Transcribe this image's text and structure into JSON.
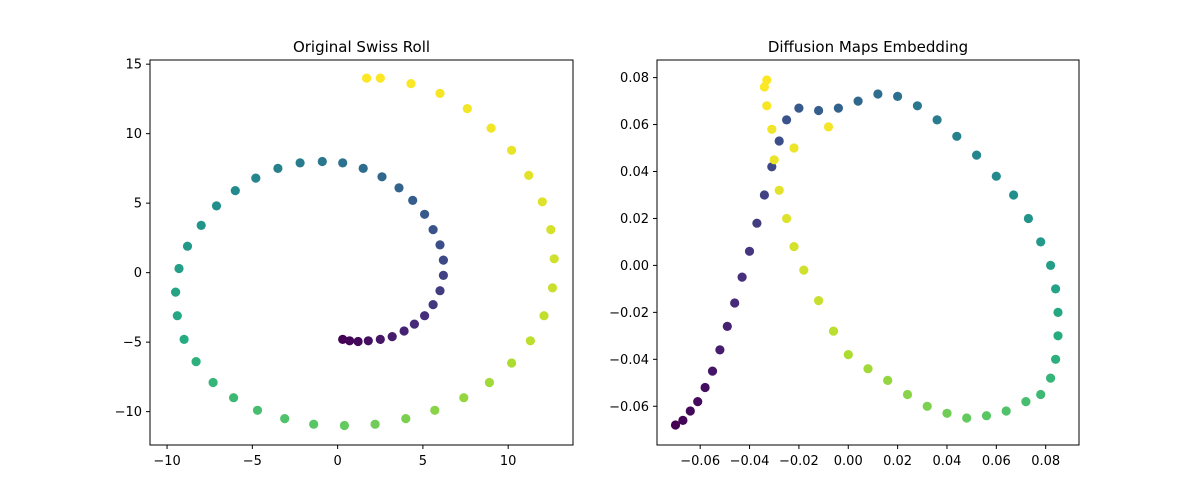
{
  "chart_data": [
    {
      "type": "scatter",
      "title": "Original Swiss Roll",
      "xlabel": "",
      "ylabel": "",
      "xlim": [
        -11,
        13.8
      ],
      "ylim": [
        -12.4,
        15.3
      ],
      "xticks": [
        -10,
        -5,
        0,
        5,
        10
      ],
      "xtick_labels": [
        "−10",
        "−5",
        "0",
        "5",
        "10"
      ],
      "yticks": [
        -10,
        -5,
        0,
        5,
        10,
        15
      ],
      "ytick_labels": [
        "−10",
        "−5",
        "0",
        "5",
        "10",
        "15"
      ],
      "colormap": "viridis",
      "grid": false,
      "legend": "none",
      "t_range": [
        4.71,
        14.14
      ],
      "points": [
        [
          0.3,
          -4.8,
          0.0
        ],
        [
          0.7,
          -4.9,
          0.01
        ],
        [
          1.2,
          -4.95,
          0.02
        ],
        [
          1.8,
          -4.9,
          0.04
        ],
        [
          2.5,
          -4.8,
          0.06
        ],
        [
          3.2,
          -4.6,
          0.08
        ],
        [
          3.9,
          -4.2,
          0.1
        ],
        [
          4.5,
          -3.7,
          0.12
        ],
        [
          5.1,
          -3.1,
          0.14
        ],
        [
          5.6,
          -2.3,
          0.16
        ],
        [
          6.0,
          -1.3,
          0.18
        ],
        [
          6.2,
          -0.2,
          0.2
        ],
        [
          6.2,
          0.9,
          0.22
        ],
        [
          6.0,
          2.0,
          0.24
        ],
        [
          5.6,
          3.1,
          0.26
        ],
        [
          5.1,
          4.2,
          0.28
        ],
        [
          4.4,
          5.2,
          0.3
        ],
        [
          3.6,
          6.1,
          0.32
        ],
        [
          2.6,
          6.9,
          0.34
        ],
        [
          1.5,
          7.5,
          0.36
        ],
        [
          0.3,
          7.9,
          0.38
        ],
        [
          -0.9,
          8.0,
          0.4
        ],
        [
          -2.2,
          7.9,
          0.42
        ],
        [
          -3.5,
          7.5,
          0.44
        ],
        [
          -4.8,
          6.8,
          0.46
        ],
        [
          -6.0,
          5.9,
          0.48
        ],
        [
          -7.1,
          4.8,
          0.5
        ],
        [
          -8.0,
          3.4,
          0.52
        ],
        [
          -8.8,
          1.9,
          0.54
        ],
        [
          -9.3,
          0.3,
          0.56
        ],
        [
          -9.5,
          -1.4,
          0.58
        ],
        [
          -9.4,
          -3.1,
          0.6
        ],
        [
          -9.0,
          -4.8,
          0.62
        ],
        [
          -8.3,
          -6.4,
          0.64
        ],
        [
          -7.3,
          -7.9,
          0.66
        ],
        [
          -6.1,
          -9.0,
          0.68
        ],
        [
          -4.7,
          -9.9,
          0.7
        ],
        [
          -3.1,
          -10.5,
          0.72
        ],
        [
          -1.4,
          -10.9,
          0.74
        ],
        [
          0.4,
          -11.0,
          0.76
        ],
        [
          2.2,
          -10.9,
          0.78
        ],
        [
          4.0,
          -10.5,
          0.8
        ],
        [
          5.7,
          -9.9,
          0.82
        ],
        [
          7.4,
          -9.0,
          0.84
        ],
        [
          8.9,
          -7.9,
          0.86
        ],
        [
          10.2,
          -6.5,
          0.88
        ],
        [
          11.3,
          -4.9,
          0.9
        ],
        [
          12.1,
          -3.1,
          0.91
        ],
        [
          12.6,
          -1.1,
          0.92
        ],
        [
          12.7,
          1.0,
          0.93
        ],
        [
          12.5,
          3.1,
          0.94
        ],
        [
          12.0,
          5.1,
          0.95
        ],
        [
          11.2,
          7.0,
          0.96
        ],
        [
          10.2,
          8.8,
          0.97
        ],
        [
          9.0,
          10.4,
          0.98
        ],
        [
          7.6,
          11.8,
          0.985
        ],
        [
          6.0,
          12.9,
          0.99
        ],
        [
          4.3,
          13.6,
          0.995
        ],
        [
          2.5,
          14.0,
          1.0
        ],
        [
          1.7,
          14.0,
          1.0
        ]
      ]
    },
    {
      "type": "scatter",
      "title": "Diffusion Maps Embedding",
      "xlabel": "",
      "ylabel": "",
      "xlim": [
        -0.0775,
        0.0935
      ],
      "ylim": [
        -0.0765,
        0.0875
      ],
      "xticks": [
        -0.06,
        -0.04,
        -0.02,
        0.0,
        0.02,
        0.04,
        0.06,
        0.08
      ],
      "xtick_labels": [
        "−0.06",
        "−0.04",
        "−0.02",
        "0.00",
        "0.02",
        "0.04",
        "0.06",
        "0.08"
      ],
      "yticks": [
        -0.06,
        -0.04,
        -0.02,
        0.0,
        0.02,
        0.04,
        0.06,
        0.08
      ],
      "ytick_labels": [
        "−0.06",
        "−0.04",
        "−0.02",
        "0.00",
        "0.02",
        "0.04",
        "0.06",
        "0.08"
      ],
      "colormap": "viridis",
      "grid": false,
      "legend": "none",
      "points": [
        [
          -0.07,
          -0.068,
          0.0
        ],
        [
          -0.067,
          -0.066,
          0.01
        ],
        [
          -0.064,
          -0.062,
          0.02
        ],
        [
          -0.061,
          -0.058,
          0.03
        ],
        [
          -0.058,
          -0.052,
          0.04
        ],
        [
          -0.055,
          -0.045,
          0.06
        ],
        [
          -0.052,
          -0.036,
          0.08
        ],
        [
          -0.049,
          -0.026,
          0.1
        ],
        [
          -0.046,
          -0.016,
          0.12
        ],
        [
          -0.043,
          -0.005,
          0.14
        ],
        [
          -0.04,
          0.006,
          0.16
        ],
        [
          -0.037,
          0.018,
          0.18
        ],
        [
          -0.034,
          0.03,
          0.2
        ],
        [
          -0.031,
          0.042,
          0.22
        ],
        [
          -0.028,
          0.053,
          0.24
        ],
        [
          -0.025,
          0.062,
          0.26
        ],
        [
          -0.02,
          0.067,
          0.28
        ],
        [
          -0.012,
          0.066,
          0.3
        ],
        [
          -0.004,
          0.067,
          0.32
        ],
        [
          0.004,
          0.07,
          0.34
        ],
        [
          0.012,
          0.073,
          0.36
        ],
        [
          0.02,
          0.072,
          0.38
        ],
        [
          0.028,
          0.068,
          0.4
        ],
        [
          0.036,
          0.062,
          0.42
        ],
        [
          0.044,
          0.055,
          0.44
        ],
        [
          0.052,
          0.047,
          0.46
        ],
        [
          0.06,
          0.038,
          0.48
        ],
        [
          0.067,
          0.03,
          0.5
        ],
        [
          0.073,
          0.02,
          0.52
        ],
        [
          0.078,
          0.01,
          0.54
        ],
        [
          0.082,
          0.0,
          0.56
        ],
        [
          0.084,
          -0.01,
          0.58
        ],
        [
          0.085,
          -0.02,
          0.6
        ],
        [
          0.085,
          -0.03,
          0.62
        ],
        [
          0.084,
          -0.04,
          0.64
        ],
        [
          0.082,
          -0.048,
          0.66
        ],
        [
          0.078,
          -0.055,
          0.68
        ],
        [
          0.072,
          -0.058,
          0.7
        ],
        [
          0.064,
          -0.062,
          0.72
        ],
        [
          0.056,
          -0.064,
          0.74
        ],
        [
          0.048,
          -0.065,
          0.76
        ],
        [
          0.04,
          -0.063,
          0.78
        ],
        [
          0.032,
          -0.06,
          0.8
        ],
        [
          0.024,
          -0.055,
          0.82
        ],
        [
          0.016,
          -0.049,
          0.84
        ],
        [
          0.008,
          -0.044,
          0.86
        ],
        [
          0.0,
          -0.038,
          0.88
        ],
        [
          -0.006,
          -0.028,
          0.9
        ],
        [
          -0.012,
          -0.015,
          0.92
        ],
        [
          -0.018,
          -0.002,
          0.93
        ],
        [
          -0.022,
          0.008,
          0.94
        ],
        [
          -0.025,
          0.02,
          0.95
        ],
        [
          -0.028,
          0.032,
          0.96
        ],
        [
          -0.03,
          0.045,
          0.97
        ],
        [
          -0.031,
          0.058,
          0.98
        ],
        [
          -0.033,
          0.068,
          0.99
        ],
        [
          -0.034,
          0.076,
          0.995
        ],
        [
          -0.033,
          0.079,
          1.0
        ],
        [
          -0.008,
          0.059,
          0.985
        ],
        [
          -0.022,
          0.05,
          0.975
        ]
      ]
    }
  ]
}
